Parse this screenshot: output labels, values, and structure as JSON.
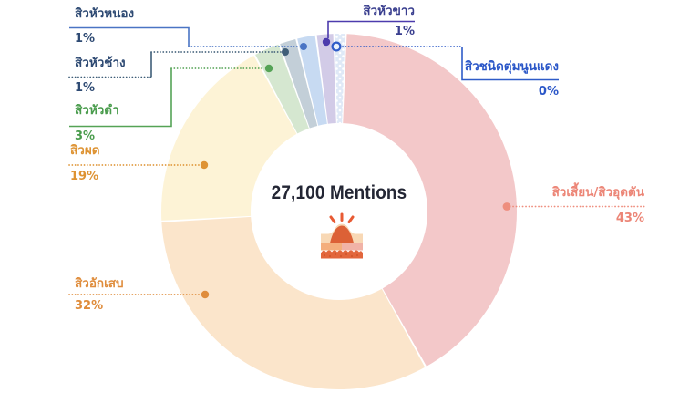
{
  "chart_data": {
    "type": "pie",
    "variant": "donut",
    "center_label": "27,100 Mentions",
    "total_mentions": 27100,
    "unit": "percent_of_mentions",
    "legend_position": "callout-labels-around-chart",
    "segments": [
      {
        "id": "clogged",
        "label": "สิวเสี้ยน/สิวอุดตัน",
        "value_pct": 43,
        "color": "#f3c8c9",
        "start_deg": 2.2,
        "end_deg": 150.8
      },
      {
        "id": "inflamed",
        "label": "สิวอักเสบ",
        "value_pct": 32,
        "color": "#fbe5cb",
        "start_deg": 150.8,
        "end_deg": 266.8
      },
      {
        "id": "rash",
        "label": "สิวผด",
        "value_pct": 19,
        "color": "#fdf3d6",
        "start_deg": 266.8,
        "end_deg": 331.6
      },
      {
        "id": "blackhead",
        "label": "สิวหัวดำ",
        "value_pct": 3,
        "color": "#d5e7d0",
        "start_deg": 331.6,
        "end_deg": 340.3
      },
      {
        "id": "elephant-cyst",
        "label": "สิวหัวช้าง",
        "value_pct": 1,
        "color": "#c3cfd8",
        "start_deg": 340.3,
        "end_deg": 346.1
      },
      {
        "id": "pustule",
        "label": "สิวหัวหนอง",
        "value_pct": 1,
        "color": "#c7daf2",
        "start_deg": 346.1,
        "end_deg": 352.5
      },
      {
        "id": "whitehead",
        "label": "สิวหัวขาว",
        "value_pct": 1,
        "color": "#d2cbe7",
        "start_deg": 352.5,
        "end_deg": 358.4
      },
      {
        "id": "red-papule",
        "label": "สิวชนิดตุ่มนูนแดง",
        "value_pct": 0,
        "color": "#dfe9f7",
        "pattern": "white-dots",
        "start_deg": 358.4,
        "end_deg": 362.2
      }
    ]
  },
  "center": {
    "total": "27,100 Mentions"
  },
  "callouts": [
    {
      "id": "pustule",
      "name": "สิวหัวหนอง",
      "pct": "1%",
      "color": "#4a74c4",
      "text_color": "#2e4a73"
    },
    {
      "id": "elephant-cyst",
      "name": "สิวหัวช้าง",
      "pct": "1%",
      "color": "#3f5e78",
      "text_color": "#2e4a73"
    },
    {
      "id": "blackhead",
      "name": "สิวหัวดำ",
      "pct": "3%",
      "color": "#55a356",
      "text_color": "#4a9c4d"
    },
    {
      "id": "rash",
      "name": "สิวผด",
      "pct": "19%",
      "color": "#de9333",
      "text_color": "#de9333"
    },
    {
      "id": "inflamed",
      "name": "สิวอักเสบ",
      "pct": "32%",
      "color": "#df8c3b",
      "text_color": "#df8c3b"
    },
    {
      "id": "whitehead",
      "name": "สิวหัวขาว",
      "pct": "1%",
      "color": "#4c3bad",
      "text_color": "#3a3f8f"
    },
    {
      "id": "red-papule",
      "name": "สิวชนิดตุ่มนูนแดง",
      "pct": "0%",
      "color": "#2e5bc8",
      "text_color": "#2b57c8"
    },
    {
      "id": "clogged",
      "name": "สิวเสี้ยน/สิวอุดตัน",
      "pct": "43%",
      "color": "#ee8e7e",
      "text_color": "#ec8576"
    }
  ]
}
